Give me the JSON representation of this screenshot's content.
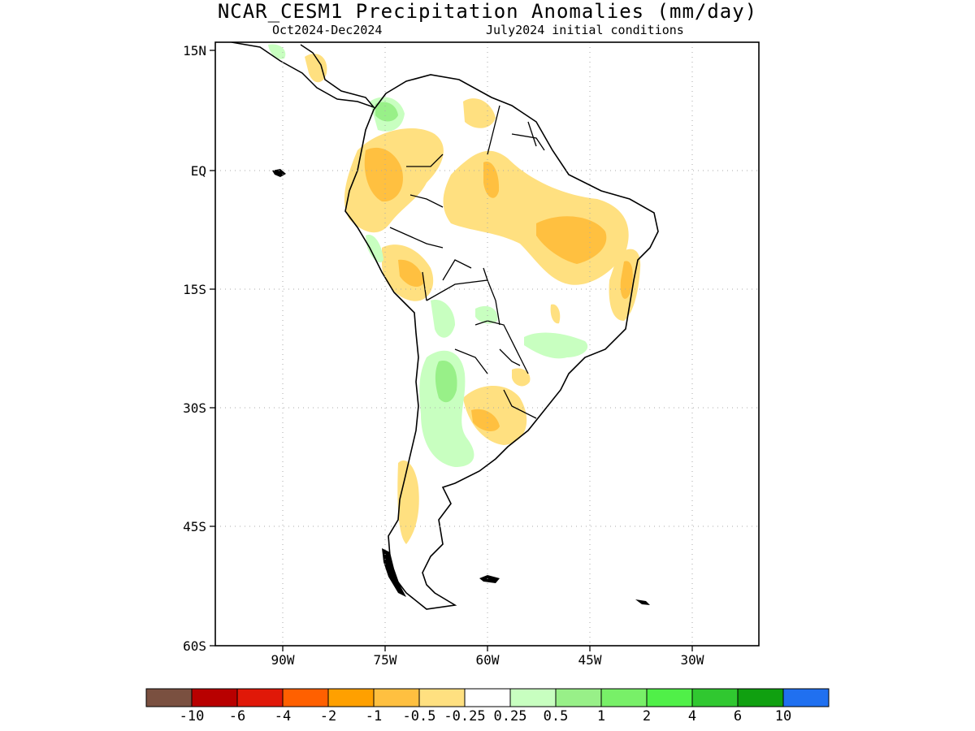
{
  "title": "NCAR_CESM1 Precipitation Anomalies (mm/day)",
  "subtitle_left": "Oct2024-Dec2024",
  "subtitle_right": "July2024 initial conditions",
  "lat_labels": [
    "15N",
    "EQ",
    "15S",
    "30S",
    "45S",
    "60S"
  ],
  "lon_labels": [
    "90W",
    "75W",
    "60W",
    "45W",
    "30W"
  ],
  "grid": true,
  "colorbar": {
    "colors": [
      "#7a5040",
      "#b80000",
      "#e01808",
      "#ff6000",
      "#ffa000",
      "#ffc040",
      "#ffe080",
      "#ffffff",
      "#c8ffc0",
      "#98f088",
      "#78f068",
      "#50f048",
      "#30c830",
      "#10a010",
      "#2070f0"
    ],
    "labels": [
      "-10",
      "-6",
      "-4",
      "-2",
      "-1",
      "-0.5",
      "-0.25",
      "0.25",
      "0.5",
      "1",
      "2",
      "4",
      "6",
      "10"
    ]
  },
  "anomaly_colors": {
    "dry_light": "#ffe080",
    "dry_medium": "#ffc040",
    "wet_light": "#c8ffc0",
    "wet_medium": "#98f088"
  }
}
